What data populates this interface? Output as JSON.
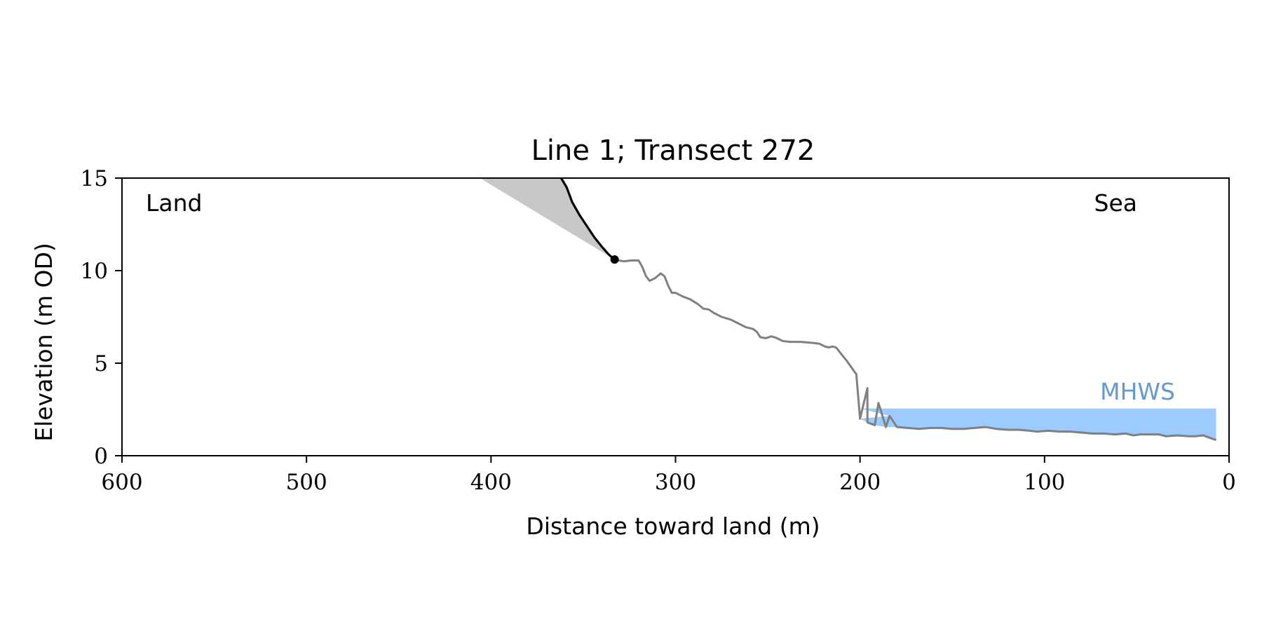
{
  "chart_data": {
    "type": "line",
    "title": "Line 1; Transect 272",
    "xlabel": "Distance toward land (m)",
    "ylabel": "Elevation (m OD)",
    "xlim": [
      600,
      0
    ],
    "ylim": [
      0,
      15
    ],
    "x_ticks": [
      600,
      500,
      400,
      300,
      200,
      100,
      0
    ],
    "y_ticks": [
      0,
      5,
      10,
      15
    ],
    "grid": false,
    "annotations": {
      "land": "Land",
      "sea": "Sea",
      "mhws": "MHWS"
    },
    "mhws": {
      "level": 2.55,
      "x_from": 200,
      "x_to": 7
    },
    "colors": {
      "profile": "#808080",
      "cliff": "#000000",
      "shade": "#c8c8c8",
      "water": "#9ecbff",
      "mhws_label": "#6699cc"
    },
    "series": [
      {
        "id": "profile",
        "points": [
          [
            333,
            10.6
          ],
          [
            328,
            10.5
          ],
          [
            324,
            10.55
          ],
          [
            320,
            10.55
          ],
          [
            318,
            10.2
          ],
          [
            316,
            9.7
          ],
          [
            314,
            9.45
          ],
          [
            311,
            9.6
          ],
          [
            308,
            9.85
          ],
          [
            306,
            9.7
          ],
          [
            304,
            9.2
          ],
          [
            302,
            8.8
          ],
          [
            300,
            8.8
          ],
          [
            296,
            8.6
          ],
          [
            292,
            8.45
          ],
          [
            288,
            8.2
          ],
          [
            285,
            7.95
          ],
          [
            282,
            7.9
          ],
          [
            279,
            7.7
          ],
          [
            275,
            7.5
          ],
          [
            270,
            7.35
          ],
          [
            266,
            7.15
          ],
          [
            262,
            6.95
          ],
          [
            258,
            6.85
          ],
          [
            256,
            6.7
          ],
          [
            254,
            6.4
          ],
          [
            251,
            6.35
          ],
          [
            248,
            6.45
          ],
          [
            245,
            6.35
          ],
          [
            242,
            6.2
          ],
          [
            238,
            6.15
          ],
          [
            232,
            6.15
          ],
          [
            226,
            6.1
          ],
          [
            222,
            6.05
          ],
          [
            219,
            5.9
          ],
          [
            217,
            5.85
          ],
          [
            215,
            5.9
          ],
          [
            213,
            5.85
          ],
          [
            211,
            5.6
          ],
          [
            207,
            5.1
          ],
          [
            202,
            4.4
          ],
          [
            196,
            3.65
          ],
          [
            190,
            2.85
          ],
          [
            184,
            2.15
          ],
          [
            200,
            2.0
          ],
          [
            196,
            1.8
          ],
          [
            192,
            1.65
          ],
          [
            186,
            1.55
          ],
          [
            180,
            1.55
          ],
          [
            174,
            1.5
          ],
          [
            168,
            1.45
          ],
          [
            162,
            1.5
          ],
          [
            156,
            1.5
          ],
          [
            150,
            1.45
          ],
          [
            144,
            1.45
          ],
          [
            138,
            1.5
          ],
          [
            132,
            1.55
          ],
          [
            126,
            1.45
          ],
          [
            120,
            1.4
          ],
          [
            114,
            1.4
          ],
          [
            108,
            1.35
          ],
          [
            104,
            1.3
          ],
          [
            98,
            1.35
          ],
          [
            92,
            1.3
          ],
          [
            86,
            1.3
          ],
          [
            80,
            1.25
          ],
          [
            74,
            1.2
          ],
          [
            68,
            1.2
          ],
          [
            62,
            1.15
          ],
          [
            56,
            1.2
          ],
          [
            52,
            1.1
          ],
          [
            48,
            1.15
          ],
          [
            44,
            1.15
          ],
          [
            38,
            1.15
          ],
          [
            34,
            1.05
          ],
          [
            28,
            1.1
          ],
          [
            22,
            1.05
          ],
          [
            18,
            1.05
          ],
          [
            14,
            1.1
          ],
          [
            10,
            0.95
          ],
          [
            7,
            0.85
          ]
        ]
      },
      {
        "id": "cliff",
        "points": [
          [
            362,
            15
          ],
          [
            359,
            14.5
          ],
          [
            356,
            13.7
          ],
          [
            352,
            13.0
          ],
          [
            348,
            12.4
          ],
          [
            344,
            11.8
          ],
          [
            340,
            11.3
          ],
          [
            336,
            10.85
          ],
          [
            333,
            10.6
          ]
        ]
      }
    ],
    "cliff_toe": [
      333,
      10.6
    ],
    "shaded_region": [
      [
        406,
        15
      ],
      [
        362,
        15
      ],
      [
        359,
        14.5
      ],
      [
        356,
        13.7
      ],
      [
        352,
        13.0
      ],
      [
        348,
        12.4
      ],
      [
        344,
        11.8
      ],
      [
        340,
        11.3
      ],
      [
        336,
        10.85
      ],
      [
        333,
        10.6
      ]
    ]
  }
}
